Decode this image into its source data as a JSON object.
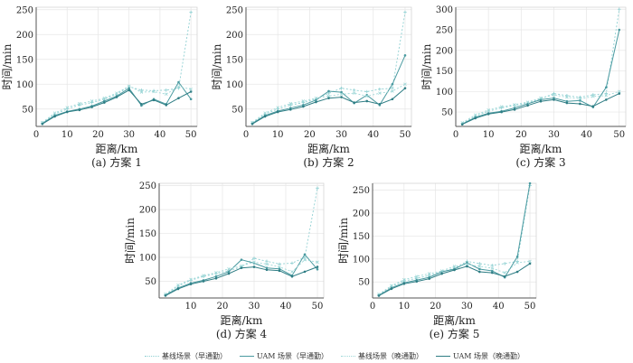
{
  "colors": {
    "baseline_morning": "#8fd0d2",
    "uam_morning": "#4a9aa0",
    "baseline_evening": "#9fd8d8",
    "uam_evening": "#2e7d84",
    "grid": "#e6e6e6",
    "axis": "#555555"
  },
  "legend": [
    {
      "label": "基线场景（早通勤）",
      "color": "#8fd0d2",
      "style": "dotted"
    },
    {
      "label": "UAM 场景（早通勤）",
      "color": "#4a9aa0",
      "style": "solid"
    },
    {
      "label": "基线场景（晚通勤）",
      "color": "#9fd8d8",
      "style": "dotted"
    },
    {
      "label": "UAM 场景（晚通勤）",
      "color": "#2e7d84",
      "style": "solid"
    }
  ],
  "chart_data": [
    {
      "type": "line",
      "caption": "(a) 方案 1",
      "xlabel": "距离/km",
      "ylabel": "时间/min",
      "xlim": [
        0,
        52
      ],
      "ylim": [
        15,
        255
      ],
      "xticks": [
        0,
        10,
        20,
        30,
        40,
        50
      ],
      "yticks": [
        50,
        100,
        150,
        200,
        250
      ],
      "grid": true,
      "x": [
        2,
        6,
        10,
        14,
        18,
        22,
        26,
        30,
        34,
        38,
        42,
        46,
        50
      ],
      "series": [
        {
          "name": "基线场景（早通勤）",
          "values": [
            22,
            40,
            50,
            58,
            63,
            70,
            80,
            95,
            88,
            87,
            88,
            92,
            245
          ]
        },
        {
          "name": "UAM 场景（早通勤）",
          "values": [
            21,
            37,
            45,
            50,
            56,
            66,
            76,
            92,
            57,
            70,
            60,
            104,
            70
          ]
        },
        {
          "name": "基线场景（晚通勤）",
          "values": [
            23,
            42,
            53,
            61,
            66,
            72,
            82,
            96,
            84,
            85,
            80,
            95,
            90
          ]
        },
        {
          "name": "UAM 场景（晚通勤）",
          "values": [
            20,
            35,
            44,
            48,
            54,
            63,
            74,
            88,
            60,
            68,
            58,
            72,
            85
          ]
        }
      ]
    },
    {
      "type": "line",
      "caption": "(b) 方案 2",
      "xlabel": "距离/km",
      "ylabel": "时间/min",
      "xlim": [
        0,
        52
      ],
      "ylim": [
        15,
        255
      ],
      "xticks": [
        0,
        10,
        20,
        30,
        40,
        50
      ],
      "yticks": [
        50,
        100,
        150,
        200,
        250
      ],
      "grid": true,
      "x": [
        2,
        6,
        10,
        14,
        18,
        22,
        26,
        30,
        34,
        38,
        42,
        46,
        50
      ],
      "series": [
        {
          "name": "基线场景（早通勤）",
          "values": [
            22,
            40,
            50,
            58,
            63,
            70,
            82,
            92,
            88,
            85,
            90,
            92,
            245
          ]
        },
        {
          "name": "UAM 场景（早通勤）",
          "values": [
            21,
            37,
            46,
            52,
            58,
            68,
            86,
            84,
            62,
            78,
            58,
            100,
            158
          ]
        },
        {
          "name": "基线场景（晚通勤）",
          "values": [
            23,
            42,
            53,
            61,
            66,
            72,
            76,
            80,
            82,
            76,
            82,
            86,
            100
          ]
        },
        {
          "name": "UAM 场景（晚通勤）",
          "values": [
            20,
            35,
            44,
            49,
            55,
            64,
            72,
            74,
            63,
            66,
            60,
            70,
            92
          ]
        }
      ]
    },
    {
      "type": "line",
      "caption": "(c) 方案 3",
      "xlabel": "距离/km",
      "ylabel": "时间/min",
      "xlim": [
        0,
        52
      ],
      "ylim": [
        15,
        305
      ],
      "xticks": [
        0,
        10,
        20,
        30,
        40,
        50
      ],
      "yticks": [
        50,
        100,
        150,
        200,
        250,
        300
      ],
      "grid": true,
      "x": [
        2,
        6,
        10,
        14,
        18,
        22,
        26,
        30,
        34,
        38,
        42,
        46,
        50
      ],
      "series": [
        {
          "name": "基线场景（早通勤）",
          "values": [
            22,
            40,
            52,
            60,
            66,
            72,
            82,
            95,
            90,
            86,
            92,
            95,
            300
          ]
        },
        {
          "name": "UAM 场景（早通勤）",
          "values": [
            21,
            37,
            47,
            52,
            60,
            70,
            80,
            84,
            76,
            78,
            62,
            110,
            250
          ]
        },
        {
          "name": "基线场景（晚通勤）",
          "values": [
            24,
            43,
            55,
            63,
            68,
            74,
            84,
            92,
            86,
            82,
            88,
            90,
            100
          ]
        },
        {
          "name": "UAM 场景（晚通勤）",
          "values": [
            20,
            35,
            45,
            50,
            56,
            66,
            76,
            80,
            72,
            70,
            64,
            80,
            95
          ]
        }
      ]
    },
    {
      "type": "line",
      "caption": "(d) 方案 4",
      "xlabel": "距离/km",
      "ylabel": "时间/min",
      "xlim": [
        0,
        52
      ],
      "ylim": [
        15,
        255
      ],
      "xticks": [
        10,
        20,
        30,
        40,
        50
      ],
      "yticks": [
        50,
        100,
        150,
        200,
        250
      ],
      "grid": true,
      "x": [
        2,
        6,
        10,
        14,
        18,
        22,
        26,
        30,
        34,
        38,
        42,
        46,
        50
      ],
      "series": [
        {
          "name": "基线场景（早通勤）",
          "values": [
            22,
            40,
            52,
            60,
            66,
            72,
            80,
            98,
            92,
            86,
            88,
            100,
            245
          ]
        },
        {
          "name": "UAM 场景（早通勤）",
          "values": [
            21,
            36,
            46,
            52,
            60,
            70,
            95,
            88,
            78,
            76,
            62,
            106,
            75
          ]
        },
        {
          "name": "基线场景（晚通勤）",
          "values": [
            23,
            42,
            54,
            62,
            68,
            76,
            82,
            90,
            86,
            80,
            70,
            95,
            90
          ]
        },
        {
          "name": "UAM 场景（晚通勤）",
          "values": [
            20,
            34,
            44,
            50,
            56,
            66,
            78,
            80,
            74,
            72,
            60,
            70,
            80
          ]
        }
      ]
    },
    {
      "type": "line",
      "caption": "(e) 方案 5",
      "xlabel": "距离/km",
      "ylabel": "时间/min",
      "xlim": [
        0,
        52
      ],
      "ylim": [
        15,
        265
      ],
      "xticks": [
        0,
        10,
        20,
        30,
        40,
        50
      ],
      "yticks": [
        50,
        100,
        150,
        200,
        250
      ],
      "grid": true,
      "x": [
        2,
        6,
        10,
        14,
        18,
        22,
        26,
        30,
        34,
        38,
        42,
        46,
        50
      ],
      "series": [
        {
          "name": "基线场景（早通勤）",
          "values": [
            22,
            40,
            52,
            58,
            64,
            72,
            80,
            95,
            90,
            86,
            90,
            95,
            260
          ]
        },
        {
          "name": "UAM 场景（早通勤）",
          "values": [
            21,
            37,
            48,
            54,
            60,
            72,
            78,
            92,
            78,
            74,
            60,
            105,
            265
          ]
        },
        {
          "name": "基线场景（晚通勤）",
          "values": [
            23,
            42,
            55,
            62,
            68,
            74,
            84,
            88,
            84,
            80,
            70,
            92,
            95
          ]
        },
        {
          "name": "UAM 场景（晚通勤）",
          "values": [
            20,
            35,
            46,
            51,
            57,
            68,
            76,
            84,
            72,
            70,
            62,
            72,
            90
          ]
        }
      ]
    }
  ]
}
